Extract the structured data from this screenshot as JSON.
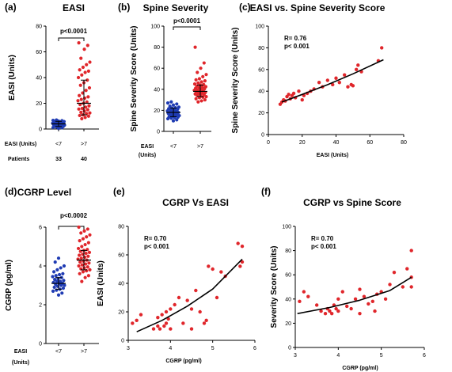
{
  "colors": {
    "blue": "#1f3bb3",
    "red": "#e0262b",
    "black": "#000000"
  },
  "chart_data": [
    {
      "id": "a",
      "type": "scatter",
      "panel_label": "(a)",
      "title": "EASI",
      "ylabel": "EASI (Units)",
      "xlabel": "",
      "categories": [
        "<7",
        ">7"
      ],
      "category_axis_label": "EASI (Units)",
      "row_label": "Patients",
      "patients": [
        "33",
        "40"
      ],
      "yticks": [
        0,
        20,
        40,
        60,
        80
      ],
      "ylim": [
        0,
        80
      ],
      "significance": "p<0.0001",
      "series": [
        {
          "category": "<7",
          "color": "blue",
          "mean": 4,
          "sd": [
            2,
            6
          ],
          "values": [
            0.5,
            1,
            1.2,
            1.5,
            1.8,
            2,
            2.2,
            2.5,
            2.7,
            3,
            3,
            3.2,
            3.4,
            3.5,
            3.7,
            3.9,
            4,
            4,
            4.2,
            4.4,
            4.5,
            4.7,
            4.9,
            5,
            5.2,
            5.4,
            5.5,
            5.8,
            6,
            6.2,
            6.5,
            6.7,
            7
          ]
        },
        {
          "category": ">7",
          "color": "red",
          "mean": 20,
          "sd": [
            11,
            38
          ],
          "values": [
            8,
            9,
            10,
            10.5,
            11,
            12,
            12.5,
            13,
            14,
            15,
            15.5,
            16,
            17,
            18,
            19,
            20,
            21,
            22,
            23,
            24,
            25,
            26,
            28,
            30,
            32,
            34,
            36,
            38,
            40,
            42,
            44,
            45,
            46,
            48,
            50,
            52,
            55,
            62,
            65,
            67
          ]
        }
      ]
    },
    {
      "id": "b",
      "type": "scatter",
      "panel_label": "(b)",
      "title": "Spine Severity",
      "ylabel": "Spine Severity Score (Units)",
      "xlabel": "",
      "categories": [
        "<7",
        ">7"
      ],
      "category_axis_label": "EASI (Units)",
      "yticks": [
        0,
        20,
        40,
        60,
        80,
        100
      ],
      "ylim": [
        0,
        100
      ],
      "significance": "p<0.0001",
      "series": [
        {
          "category": "<7",
          "color": "blue",
          "mean": 18,
          "sd": [
            14,
            22
          ],
          "values": [
            10,
            11,
            12,
            12.5,
            13,
            13.5,
            14,
            14.5,
            15,
            15,
            15.5,
            16,
            16.5,
            17,
            17,
            17.5,
            18,
            18,
            18.5,
            19,
            19.5,
            20,
            20.5,
            21,
            21.5,
            22,
            22.5,
            23,
            24,
            25,
            26,
            27,
            28
          ]
        },
        {
          "category": ">7",
          "color": "red",
          "mean": 38,
          "sd": [
            33,
            44
          ],
          "values": [
            28,
            29,
            30,
            31,
            32,
            32.5,
            33,
            34,
            34.5,
            35,
            35.5,
            36,
            36.5,
            37,
            37.5,
            38,
            38.5,
            39,
            39.5,
            40,
            40.5,
            41,
            41.5,
            42,
            42.5,
            43,
            44,
            44.5,
            45,
            46,
            47,
            48,
            49,
            50,
            52,
            54,
            56,
            60,
            65,
            80
          ]
        }
      ]
    },
    {
      "id": "c",
      "type": "scatter",
      "panel_label": "(c)",
      "title": "EASI vs. Spine Severity Score",
      "xlabel": "EASI (Units)",
      "ylabel": "Spine Severity Score (Units)",
      "xticks": [
        0,
        20,
        40,
        60,
        80
      ],
      "xlim": [
        0,
        80
      ],
      "yticks": [
        0,
        20,
        40,
        60,
        80,
        100
      ],
      "ylim": [
        0,
        100
      ],
      "annotations": [
        "R= 0.76",
        "p< 0.001"
      ],
      "fit": {
        "x": [
          8,
          20,
          35,
          50,
          68
        ],
        "y": [
          30,
          37,
          46,
          56,
          69
        ]
      },
      "points": [
        [
          7,
          28
        ],
        [
          8,
          30
        ],
        [
          9,
          32
        ],
        [
          10,
          31
        ],
        [
          11,
          35
        ],
        [
          12,
          37
        ],
        [
          13,
          33
        ],
        [
          14,
          36
        ],
        [
          15,
          38
        ],
        [
          16,
          34
        ],
        [
          18,
          40
        ],
        [
          20,
          32
        ],
        [
          21,
          36
        ],
        [
          23,
          38
        ],
        [
          25,
          40
        ],
        [
          27,
          42
        ],
        [
          30,
          48
        ],
        [
          32,
          44
        ],
        [
          35,
          50
        ],
        [
          38,
          46
        ],
        [
          40,
          52
        ],
        [
          42,
          48
        ],
        [
          45,
          55
        ],
        [
          47,
          44
        ],
        [
          49,
          46
        ],
        [
          50,
          45
        ],
        [
          52,
          60
        ],
        [
          53,
          64
        ],
        [
          55,
          58
        ],
        [
          65,
          68
        ],
        [
          67,
          80
        ]
      ]
    },
    {
      "id": "d",
      "type": "scatter",
      "panel_label": "(d)",
      "title": "CGRP Level",
      "ylabel": "CGRP (pg/ml)",
      "xlabel": "",
      "categories": [
        "<7",
        ">7"
      ],
      "category_axis_label": "EASI (Units)",
      "yticks": [
        0,
        2,
        4,
        6
      ],
      "ylim": [
        0,
        6
      ],
      "significance": "p<0.0002",
      "series": [
        {
          "category": "<7",
          "color": "blue",
          "mean": 3.1,
          "sd": [
            2.8,
            3.4
          ],
          "values": [
            2.5,
            2.6,
            2.7,
            2.75,
            2.8,
            2.85,
            2.9,
            2.95,
            3,
            3,
            3.05,
            3.1,
            3.1,
            3.15,
            3.2,
            3.2,
            3.25,
            3.3,
            3.35,
            3.4,
            3.45,
            3.5,
            3.55,
            3.6,
            3.7,
            3.8,
            3.9,
            4.0,
            4.2,
            4.4
          ]
        },
        {
          "category": ">7",
          "color": "red",
          "mean": 4.3,
          "sd": [
            3.8,
            4.8
          ],
          "values": [
            3.2,
            3.4,
            3.5,
            3.6,
            3.7,
            3.75,
            3.8,
            3.85,
            3.9,
            3.95,
            4,
            4.05,
            4.1,
            4.15,
            4.2,
            4.25,
            4.3,
            4.35,
            4.4,
            4.45,
            4.5,
            4.55,
            4.6,
            4.65,
            4.7,
            4.75,
            4.8,
            4.85,
            4.9,
            5.0,
            5.1,
            5.2,
            5.3,
            5.4,
            5.5,
            5.6,
            5.7,
            5.8,
            5.9,
            6.0
          ]
        }
      ]
    },
    {
      "id": "e",
      "type": "scatter",
      "panel_label": "(e)",
      "title": "CGRP Vs EASI",
      "xlabel": "CGRP (pg/ml)",
      "ylabel": "EASI (Units)",
      "xticks": [
        3,
        4,
        5,
        6
      ],
      "xlim": [
        3,
        6
      ],
      "yticks": [
        0,
        20,
        40,
        60,
        80
      ],
      "ylim": [
        0,
        80
      ],
      "annotations": [
        "R= 0.70",
        "p< 0.001"
      ],
      "fit": {
        "x": [
          3.2,
          3.8,
          4.4,
          5.0,
          5.7
        ],
        "y": [
          6,
          14,
          24,
          36,
          57
        ]
      },
      "points": [
        [
          3.1,
          12
        ],
        [
          3.2,
          14
        ],
        [
          3.3,
          18
        ],
        [
          3.6,
          8
        ],
        [
          3.7,
          10
        ],
        [
          3.7,
          16
        ],
        [
          3.75,
          8
        ],
        [
          3.8,
          18
        ],
        [
          3.85,
          10
        ],
        [
          3.9,
          20
        ],
        [
          3.9,
          12
        ],
        [
          3.95,
          15
        ],
        [
          4.0,
          22
        ],
        [
          4.0,
          8
        ],
        [
          4.1,
          25
        ],
        [
          4.2,
          30
        ],
        [
          4.3,
          12
        ],
        [
          4.4,
          28
        ],
        [
          4.5,
          22
        ],
        [
          4.5,
          8
        ],
        [
          4.6,
          35
        ],
        [
          4.7,
          20
        ],
        [
          4.8,
          12
        ],
        [
          4.85,
          14
        ],
        [
          4.9,
          52
        ],
        [
          5.0,
          50
        ],
        [
          5.1,
          30
        ],
        [
          5.2,
          48
        ],
        [
          5.3,
          45
        ],
        [
          5.6,
          68
        ],
        [
          5.65,
          52
        ],
        [
          5.7,
          66
        ],
        [
          5.7,
          55
        ]
      ]
    },
    {
      "id": "f",
      "type": "scatter",
      "panel_label": "(f)",
      "title": "CGRP vs Spine Score",
      "xlabel": "CGRP (pg/ml)",
      "ylabel": "Severity Score (Units)",
      "xticks": [
        3,
        4,
        5,
        6
      ],
      "xlim": [
        3,
        6
      ],
      "yticks": [
        0,
        20,
        40,
        60,
        80,
        100
      ],
      "ylim": [
        0,
        100
      ],
      "annotations": [
        "R= 0.70",
        "p< 0.001"
      ],
      "fit": {
        "x": [
          3.05,
          3.8,
          4.5,
          5.2,
          5.7
        ],
        "y": [
          28,
          33,
          39,
          47,
          58
        ]
      },
      "points": [
        [
          3.1,
          38
        ],
        [
          3.2,
          46
        ],
        [
          3.3,
          42
        ],
        [
          3.5,
          35
        ],
        [
          3.6,
          30
        ],
        [
          3.7,
          28
        ],
        [
          3.75,
          32
        ],
        [
          3.8,
          30
        ],
        [
          3.85,
          28
        ],
        [
          3.9,
          35
        ],
        [
          3.95,
          32
        ],
        [
          4.0,
          40
        ],
        [
          4.0,
          30
        ],
        [
          4.1,
          46
        ],
        [
          4.2,
          34
        ],
        [
          4.3,
          32
        ],
        [
          4.4,
          40
        ],
        [
          4.5,
          28
        ],
        [
          4.5,
          48
        ],
        [
          4.6,
          42
        ],
        [
          4.7,
          36
        ],
        [
          4.8,
          38
        ],
        [
          4.85,
          30
        ],
        [
          4.9,
          44
        ],
        [
          5.0,
          46
        ],
        [
          5.1,
          40
        ],
        [
          5.2,
          52
        ],
        [
          5.3,
          62
        ],
        [
          5.5,
          50
        ],
        [
          5.6,
          65
        ],
        [
          5.7,
          80
        ],
        [
          5.7,
          58
        ],
        [
          5.7,
          50
        ]
      ]
    }
  ]
}
